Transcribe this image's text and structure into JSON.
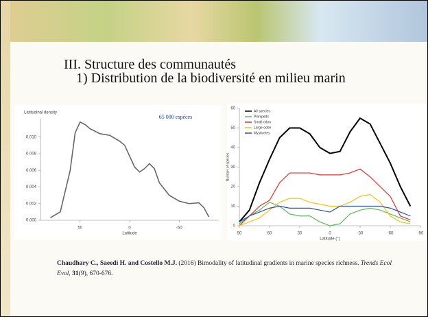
{
  "slide": {
    "title": "III. Structure des communautés",
    "subtitle": "1) Distribution de la biodiversité en milieu marin"
  },
  "citation": {
    "authors": "Chaudhary C., Saeedi H. and Costello M.J.",
    "text": "(2016) Bimodality of latitudinal gradients in marine species richness.",
    "journal": "Trends Ecol Evol,",
    "volume": "31",
    "pages": "(9), 670-676."
  },
  "chart_data": [
    {
      "type": "line",
      "title": "Latitudinal density",
      "x_label": "Latitude",
      "annotation": "65 000 espèces",
      "color": "#666666",
      "x": [
        80,
        70,
        60,
        55,
        50,
        45,
        40,
        30,
        20,
        10,
        5,
        0,
        -5,
        -10,
        -15,
        -20,
        -25,
        -30,
        -40,
        -50,
        -60,
        -70,
        -75,
        -80
      ],
      "values": [
        0.0003,
        0.001,
        0.006,
        0.0105,
        0.0118,
        0.0115,
        0.011,
        0.0104,
        0.0102,
        0.0095,
        0.009,
        0.0077,
        0.0064,
        0.0058,
        0.0062,
        0.0068,
        0.0062,
        0.0045,
        0.003,
        0.0023,
        0.002,
        0.0021,
        0.0015,
        0.0004
      ],
      "xlim": [
        90,
        -90
      ],
      "xticks": [
        50,
        0,
        -50
      ],
      "ylim": [
        0,
        0.0122
      ],
      "yticks": [
        {
          "value": 0,
          "label": "0.000"
        },
        {
          "value": 0.002,
          "label": "0.002"
        },
        {
          "value": 0.004,
          "label": "0.004"
        },
        {
          "value": 0.006,
          "label": "0.006"
        },
        {
          "value": 0.008,
          "label": "0.008"
        },
        {
          "value": 0.01,
          "label": "0.010"
        }
      ]
    },
    {
      "type": "line",
      "x_label": "Latitude (°)",
      "y_label": "Number of species",
      "legend": "top-left",
      "x": [
        90,
        80,
        70,
        60,
        50,
        40,
        30,
        20,
        10,
        0,
        -10,
        -20,
        -30,
        -40,
        -50,
        -60,
        -70,
        -80
      ],
      "series": [
        {
          "name": "All species",
          "color": "#000000",
          "values": [
            2,
            8,
            22,
            34,
            45,
            50,
            50,
            47,
            40,
            37,
            38,
            48,
            55,
            52,
            42,
            32,
            20,
            10
          ]
        },
        {
          "name": "Pinnipeds",
          "color": "#5cb85c",
          "values": [
            1,
            5,
            8,
            12,
            10,
            6,
            5,
            5,
            2,
            0,
            1,
            6,
            8,
            9,
            8,
            6,
            4,
            2
          ]
        },
        {
          "name": "Small odon",
          "color": "#e0302a",
          "values": [
            0,
            5,
            10,
            13,
            22,
            27,
            27,
            27,
            26,
            26,
            26,
            27,
            29,
            25,
            20,
            15,
            5,
            3
          ]
        },
        {
          "name": "Large odon",
          "color": "#f5c010",
          "values": [
            0,
            2,
            4,
            8,
            12,
            14,
            14,
            12,
            11,
            10,
            10,
            12,
            15,
            16,
            12,
            5,
            2,
            1
          ]
        },
        {
          "name": "Mysticetes",
          "color": "#2a4fa8",
          "values": [
            2,
            5,
            7,
            9,
            10,
            9,
            9,
            9,
            8,
            7,
            10,
            10,
            10,
            10,
            10,
            9,
            7,
            5
          ]
        }
      ],
      "xlim": [
        90,
        -90
      ],
      "xticks": [
        90,
        60,
        30,
        0,
        -30,
        -60,
        -90
      ],
      "ylim": [
        0,
        60
      ],
      "yticks": [
        0,
        10,
        20,
        30,
        40,
        50,
        60
      ]
    }
  ]
}
